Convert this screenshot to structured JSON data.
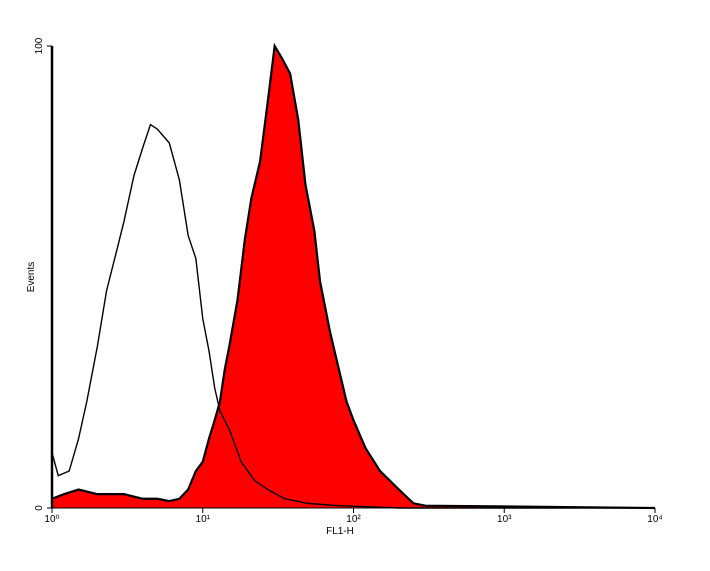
{
  "chart_data": {
    "type": "histogram-overlay",
    "x_label": "FL1-H",
    "y_label": "Events",
    "xscale": "log",
    "xlim": [
      1,
      10000
    ],
    "xticks": [
      {
        "value": 1,
        "label": "10⁰"
      },
      {
        "value": 10,
        "label": "10¹"
      },
      {
        "value": 100,
        "label": "10²"
      },
      {
        "value": 1000,
        "label": "10³"
      },
      {
        "value": 10000,
        "label": "10⁴"
      }
    ],
    "ylim": [
      0,
      100
    ],
    "yticks": [
      0,
      100
    ],
    "series": [
      {
        "color": "#ff0000",
        "filled": true,
        "x": [
          1,
          1.2,
          1.5,
          2,
          3,
          4,
          5,
          6,
          7,
          8,
          9,
          10,
          11,
          12,
          13,
          14,
          15,
          17,
          19,
          21,
          24,
          27,
          30,
          34,
          38,
          43,
          48,
          55,
          60,
          70,
          80,
          90,
          100,
          120,
          150,
          200,
          250,
          300,
          10000
        ],
        "values": [
          2,
          3,
          4,
          3,
          3,
          2,
          2,
          1.5,
          2,
          4,
          8,
          10,
          15,
          19,
          23,
          30,
          35,
          45,
          58,
          67,
          75,
          88,
          100,
          97,
          94,
          84,
          70,
          60,
          49,
          38,
          30,
          23,
          19,
          13,
          8,
          4,
          1,
          0.5,
          0
        ]
      },
      {
        "color": "#000000",
        "filled": false,
        "x": [
          1,
          1.1,
          1.3,
          1.5,
          1.7,
          2,
          2.3,
          2.7,
          3,
          3.5,
          4,
          4.5,
          5,
          6,
          7,
          8,
          9,
          10,
          11,
          12,
          13,
          15,
          18,
          22,
          27,
          35,
          50,
          80,
          200,
          10000
        ],
        "values": [
          12,
          7,
          8,
          15,
          23,
          35,
          47,
          56,
          62,
          72,
          78,
          83,
          82,
          79,
          71,
          59,
          54,
          41,
          34,
          26,
          21,
          17,
          10,
          6,
          4,
          2,
          1,
          0.5,
          0,
          0
        ]
      }
    ]
  }
}
